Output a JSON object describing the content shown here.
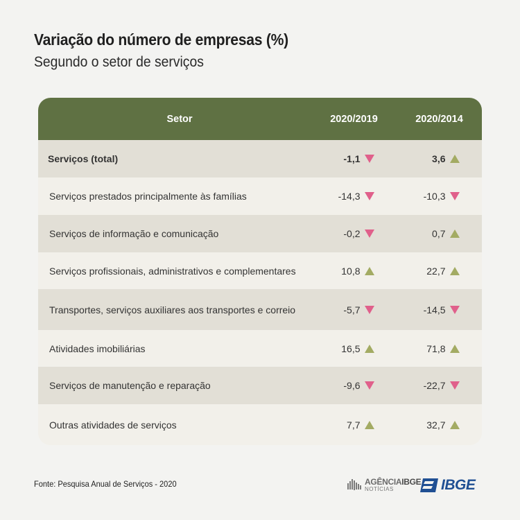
{
  "header": {
    "title": "Variação do número de empresas (%)",
    "subtitle": "Segundo o setor de serviços"
  },
  "chart_data": {
    "type": "table",
    "columns": [
      "Setor",
      "2020/2019",
      "2020/2014"
    ],
    "rows": [
      {
        "setor": "Serviços (total)",
        "v2019": "-1,1",
        "v2014": "3,6",
        "d2019": "down",
        "d2014": "up",
        "total": true
      },
      {
        "setor": "Serviços prestados principalmente às famílias",
        "v2019": "-14,3",
        "v2014": "-10,3",
        "d2019": "down",
        "d2014": "down"
      },
      {
        "setor": "Serviços de informação e comunicação",
        "v2019": "-0,2",
        "v2014": "0,7",
        "d2019": "down",
        "d2014": "up"
      },
      {
        "setor": "Serviços profissionais, administrativos e complementares",
        "v2019": "10,8",
        "v2014": "22,7",
        "d2019": "up",
        "d2014": "up"
      },
      {
        "setor": "Transportes, serviços auxiliares aos transportes e correio",
        "v2019": "-5,7",
        "v2014": "-14,5",
        "d2019": "down",
        "d2014": "down"
      },
      {
        "setor": "Atividades imobiliárias",
        "v2019": "16,5",
        "v2014": "71,8",
        "d2019": "up",
        "d2014": "up"
      },
      {
        "setor": "Serviços de manutenção e reparação",
        "v2019": "-9,6",
        "v2014": "-22,7",
        "d2019": "down",
        "d2014": "down"
      },
      {
        "setor": "Outras atividades de serviços",
        "v2019": "7,7",
        "v2014": "32,7",
        "d2019": "up",
        "d2014": "up"
      }
    ]
  },
  "colors": {
    "header_bg": "#5f7143",
    "row_shade": "#e2dfd6",
    "row_light": "#f2f0ea",
    "arrow_up": "#a3ab63",
    "arrow_down": "#e0608b"
  },
  "footer": {
    "source": "Fonte: Pesquisa Anual de Serviços - 2020",
    "agencia_name_a": "AGÊNCIA",
    "agencia_name_b": "IBGE",
    "agencia_sub": "NOTÍCIAS",
    "ibge_logo": "IBGE"
  }
}
